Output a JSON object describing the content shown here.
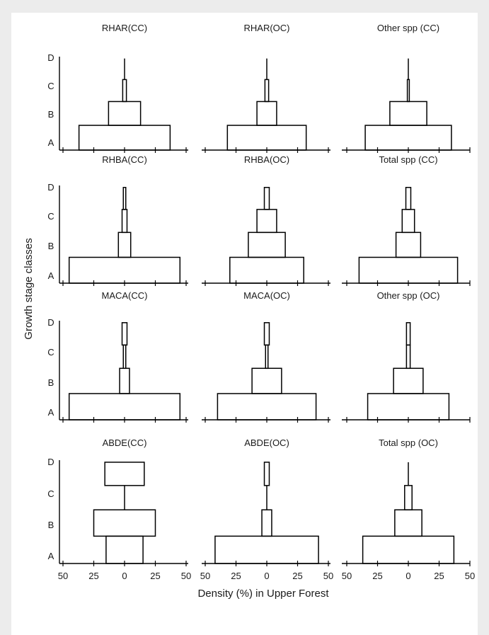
{
  "chart_data": {
    "type": "population-pyramid-grid",
    "ylabel": "Growth stage classes",
    "xlabel": "Density (%) in Upper Forest",
    "stage_labels": [
      "A",
      "B",
      "C",
      "D"
    ],
    "x_tick_labels": [
      "50",
      "25",
      "0",
      "25",
      "50"
    ],
    "xlim": [
      -50,
      50
    ],
    "note": "Each panel: symmetric bars, value = half-width in density % for stages A..D",
    "panels": [
      {
        "title": "RHAR(CC)",
        "values": [
          37,
          13,
          1.5,
          0
        ]
      },
      {
        "title": "RHAR(OC)",
        "values": [
          32,
          8,
          1.5,
          0
        ]
      },
      {
        "title": "Other spp (CC)",
        "values": [
          35,
          15,
          0.8,
          0
        ]
      },
      {
        "title": "RHBA(CC)",
        "values": [
          45,
          5,
          2,
          1
        ]
      },
      {
        "title": "RHBA(OC)",
        "values": [
          30,
          15,
          8,
          2
        ]
      },
      {
        "title": "Total spp (CC)",
        "values": [
          40,
          10,
          5,
          2
        ]
      },
      {
        "title": "MACA(CC)",
        "values": [
          45,
          4,
          1,
          2
        ]
      },
      {
        "title": "MACA(OC)",
        "values": [
          40,
          12,
          1,
          2
        ]
      },
      {
        "title": "Other spp (OC)",
        "values": [
          33,
          12,
          1.5,
          1.5
        ]
      },
      {
        "title": "ABDE(CC)",
        "values": [
          15,
          25,
          0,
          16
        ]
      },
      {
        "title": "ABDE(OC)",
        "values": [
          42,
          4,
          0,
          2
        ]
      },
      {
        "title": "Total spp (OC)",
        "values": [
          37,
          11,
          3,
          0
        ]
      }
    ]
  }
}
